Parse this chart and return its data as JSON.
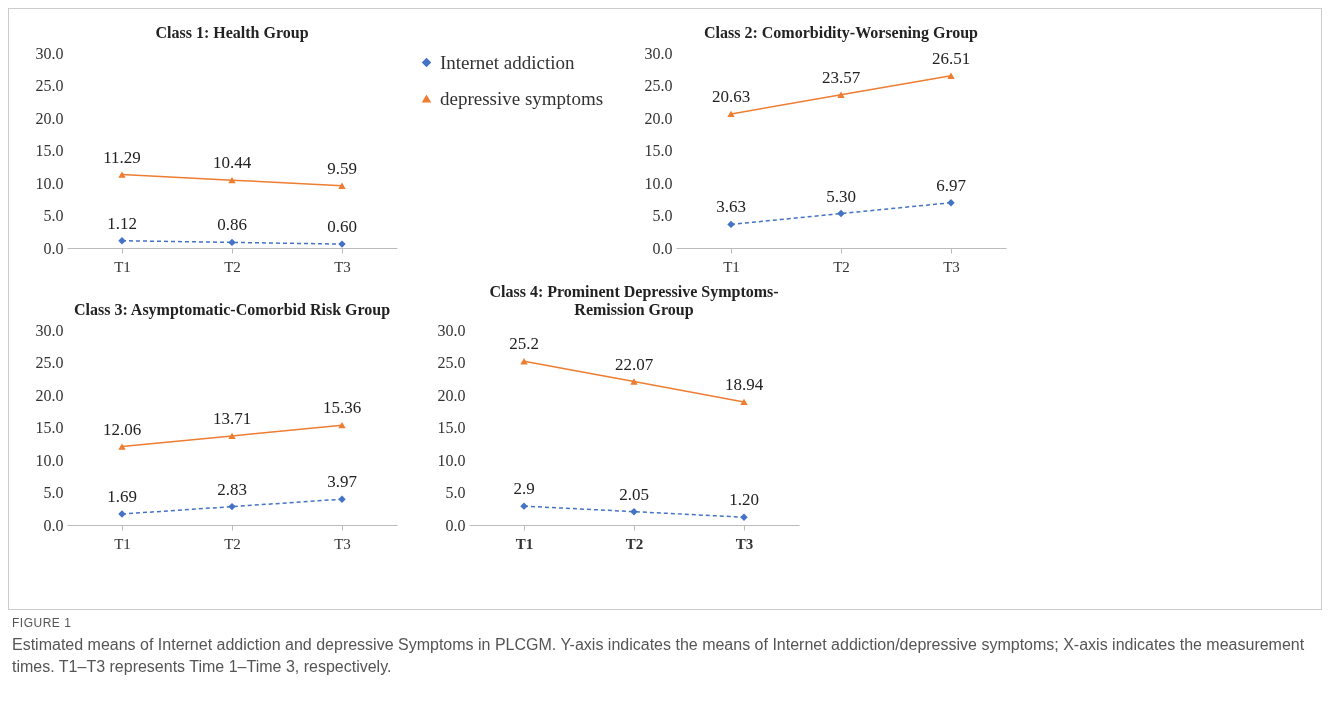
{
  "chart_data": [
    {
      "type": "line",
      "title": "Class 1: Health Group",
      "categories": [
        "T1",
        "T2",
        "T3"
      ],
      "ylim": [
        0,
        30
      ],
      "yticks": [
        {
          "value": 0,
          "label": "0.0"
        },
        {
          "value": 5,
          "label": "5.0"
        },
        {
          "value": 10,
          "label": "10.0"
        },
        {
          "value": 15,
          "label": "15.0"
        },
        {
          "value": 20,
          "label": "20.0"
        },
        {
          "value": 25,
          "label": "25.0"
        },
        {
          "value": 30,
          "label": "30.0"
        }
      ],
      "grid": false,
      "legend": "right",
      "series": [
        {
          "name": "Internet addiction",
          "color": "#4472c4",
          "marker": "diamond",
          "line_style": "dashed",
          "values": [
            1.12,
            0.86,
            0.6
          ],
          "value_labels": [
            "1.12",
            "0.86",
            "0.60"
          ]
        },
        {
          "name": "depressive symptoms",
          "color": "#ed7d31",
          "marker": "triangle",
          "line_style": "solid",
          "values": [
            11.29,
            10.44,
            9.59
          ],
          "value_labels": [
            "11.29",
            "10.44",
            "9.59"
          ]
        }
      ]
    },
    {
      "type": "line",
      "title": "Class 2: Comorbidity-Worsening Group",
      "categories": [
        "T1",
        "T2",
        "T3"
      ],
      "ylim": [
        0,
        30
      ],
      "yticks": [
        {
          "value": 0,
          "label": "0.0"
        },
        {
          "value": 5,
          "label": "5.0"
        },
        {
          "value": 10,
          "label": "10.0"
        },
        {
          "value": 15,
          "label": "15.0"
        },
        {
          "value": 20,
          "label": "20.0"
        },
        {
          "value": 25,
          "label": "25.0"
        },
        {
          "value": 30,
          "label": "30.0"
        }
      ],
      "grid": false,
      "series": [
        {
          "color": "#4472c4",
          "marker": "diamond",
          "line_style": "dashed",
          "values": [
            3.63,
            5.3,
            6.97
          ],
          "value_labels": [
            "3.63",
            "5.30",
            "6.97"
          ]
        },
        {
          "color": "#ed7d31",
          "marker": "triangle",
          "line_style": "solid",
          "values": [
            20.63,
            23.57,
            26.51
          ],
          "value_labels": [
            "20.63",
            "23.57",
            "26.51"
          ]
        }
      ]
    },
    {
      "type": "line",
      "title": "Class 3: Asymptomatic-Comorbid Risk Group",
      "categories": [
        "T1",
        "T2",
        "T3"
      ],
      "ylim": [
        0,
        30
      ],
      "yticks": [
        {
          "value": 0,
          "label": "0.0"
        },
        {
          "value": 5,
          "label": "5.0"
        },
        {
          "value": 10,
          "label": "10.0"
        },
        {
          "value": 15,
          "label": "15.0"
        },
        {
          "value": 20,
          "label": "20.0"
        },
        {
          "value": 25,
          "label": "25.0"
        },
        {
          "value": 30,
          "label": "30.0"
        }
      ],
      "grid": false,
      "legend": false,
      "series": [
        {
          "color": "#4472c4",
          "marker": "diamond",
          "line_style": "dashed",
          "values": [
            1.69,
            2.83,
            3.97
          ],
          "value_labels": [
            "1.69",
            "2.83",
            "3.97"
          ]
        },
        {
          "color": "#ed7d31",
          "marker": "triangle",
          "line_style": "solid",
          "values": [
            12.06,
            13.71,
            15.36
          ],
          "value_labels": [
            "12.06",
            "13.71",
            "15.36"
          ]
        }
      ]
    },
    {
      "type": "line",
      "title": "Class 4: Prominent Depressive Symptoms-Remission Group",
      "categories": [
        "T1",
        "T2",
        "T3"
      ],
      "ylim": [
        0,
        30
      ],
      "yticks": [
        {
          "value": 0,
          "label": "0.0"
        },
        {
          "value": 5,
          "label": "5.0"
        },
        {
          "value": 10,
          "label": "10.0"
        },
        {
          "value": 15,
          "label": "15.0"
        },
        {
          "value": 20,
          "label": "20.0"
        },
        {
          "value": 25,
          "label": "25.0"
        },
        {
          "value": 30,
          "label": "30.0"
        }
      ],
      "grid": false,
      "legend": false,
      "annotations": [
        "FIGURE 1",
        "Estimated means of Internet addiction and depressive Symptoms in PLCGM. Y-axis indicates the means of Internet addiction/depressive symptoms; X-axis indicates the measurement times. T1–T3 represents Time 1–Time 3, respectively."
      ],
      "series": [
        {
          "color": "#4472c4",
          "marker": "diamond",
          "line_style": "dashed",
          "values": [
            2.9,
            2.05,
            1.2
          ],
          "value_labels": [
            "2.9",
            "2.05",
            "1.20"
          ]
        },
        {
          "color": "#ed7d31",
          "marker": "triangle",
          "line_style": "solid",
          "values": [
            25.2,
            22.07,
            18.94
          ],
          "value_labels": [
            "25.2",
            "22.07",
            "18.94"
          ]
        }
      ]
    }
  ]
}
